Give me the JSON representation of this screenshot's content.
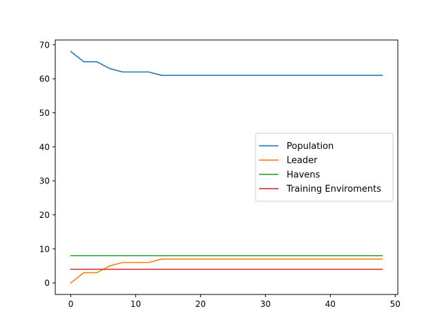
{
  "chart_data": {
    "type": "line",
    "title": "",
    "xlabel": "",
    "ylabel": "",
    "xlim": [
      -2.4,
      50.4
    ],
    "ylim": [
      -3.4,
      71.4
    ],
    "xticks": [
      0,
      10,
      20,
      30,
      40,
      50
    ],
    "yticks": [
      0,
      10,
      20,
      30,
      40,
      50,
      60,
      70
    ],
    "grid": false,
    "legend_position": "center-right",
    "x": [
      0,
      2,
      4,
      6,
      8,
      10,
      12,
      14,
      16,
      18,
      20,
      22,
      24,
      26,
      28,
      30,
      32,
      34,
      36,
      38,
      40,
      42,
      44,
      46,
      48
    ],
    "series": [
      {
        "name": "Population",
        "color": "#1f77b4",
        "values": [
          68,
          65,
          65,
          63,
          62,
          62,
          62,
          61,
          61,
          61,
          61,
          61,
          61,
          61,
          61,
          61,
          61,
          61,
          61,
          61,
          61,
          61,
          61,
          61,
          61
        ]
      },
      {
        "name": "Leader",
        "color": "#ff7f0e",
        "values": [
          0,
          3,
          3,
          5,
          6,
          6,
          6,
          7,
          7,
          7,
          7,
          7,
          7,
          7,
          7,
          7,
          7,
          7,
          7,
          7,
          7,
          7,
          7,
          7,
          7
        ]
      },
      {
        "name": "Havens",
        "color": "#2ca02c",
        "values": [
          8,
          8,
          8,
          8,
          8,
          8,
          8,
          8,
          8,
          8,
          8,
          8,
          8,
          8,
          8,
          8,
          8,
          8,
          8,
          8,
          8,
          8,
          8,
          8,
          8
        ]
      },
      {
        "name": "Training Enviroments",
        "color": "#d62728",
        "values": [
          4,
          4,
          4,
          4,
          4,
          4,
          4,
          4,
          4,
          4,
          4,
          4,
          4,
          4,
          4,
          4,
          4,
          4,
          4,
          4,
          4,
          4,
          4,
          4,
          4
        ]
      }
    ]
  }
}
